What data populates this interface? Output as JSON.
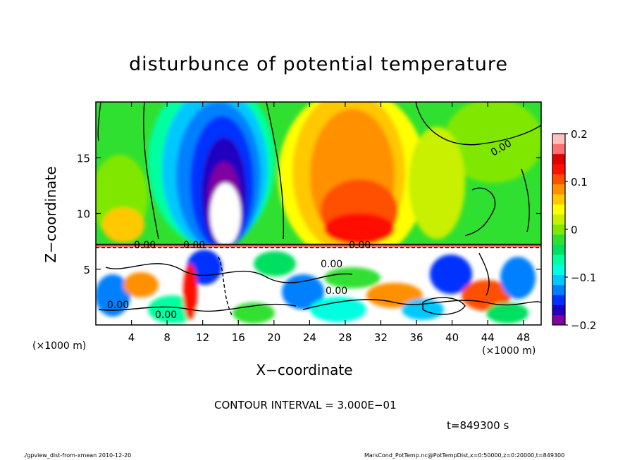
{
  "chart_data": {
    "type": "heatmap",
    "title": "disturbunce of potential temperature",
    "xlabel": "X−coordinate",
    "ylabel": "Z−coordinate",
    "x_unit_left": "(×1000 m)",
    "x_unit_right": "(×1000 m)",
    "xlim": [
      0,
      50
    ],
    "ylim": [
      0,
      20
    ],
    "x_ticks": [
      4,
      8,
      12,
      16,
      20,
      24,
      28,
      32,
      36,
      40,
      44,
      48
    ],
    "x_tick_labels": [
      "4",
      "8",
      "12",
      "16",
      "20",
      "24",
      "28",
      "32",
      "36",
      "40",
      "44",
      "48"
    ],
    "y_ticks": [
      5,
      10,
      15
    ],
    "y_tick_labels": [
      "5",
      "10",
      "15"
    ],
    "colorbar": {
      "range": [
        -0.2,
        0.2
      ],
      "ticks": [
        0.2,
        0.1,
        0,
        -0.1,
        -0.2
      ],
      "tick_labels": [
        "0.2",
        "0.1",
        "0",
        "−0.1",
        "−0.2"
      ],
      "colors": [
        "#8000a0",
        "#2000c0",
        "#0030ff",
        "#0080ff",
        "#00c8ff",
        "#00ffe0",
        "#00ffa0",
        "#00e060",
        "#30e030",
        "#80e800",
        "#c8f000",
        "#ffff00",
        "#ffc800",
        "#ff9000",
        "#ff5000",
        "#ff1000",
        "#e00000",
        "#ff7070",
        "#ffc0c0"
      ]
    },
    "contour_labels": [
      "0.00",
      "0.00",
      "0.00",
      "0.00",
      "0.00",
      "0.00",
      "0.00",
      "0.00"
    ],
    "contour_interval_text": "CONTOUR INTERVAL = 3.000E−01",
    "time_text": "t=849300 s",
    "footer_left": "./gpview_dist-from-xmean  2010-12-20",
    "footer_right": "MarsCond_PotTemp.nc@PotTempDist,x=0:50000,z=0:20000,t=849300"
  }
}
